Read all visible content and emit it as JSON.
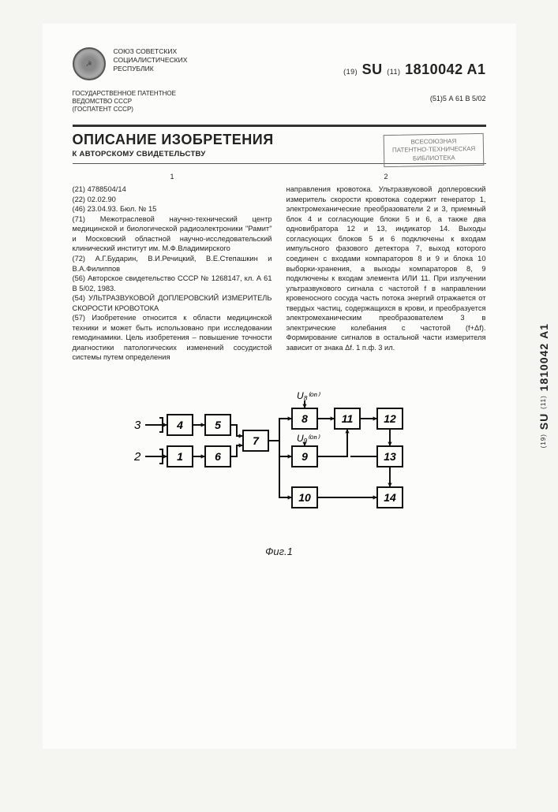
{
  "header": {
    "issuer_line1": "СОЮЗ СОВЕТСКИХ",
    "issuer_line2": "СОЦИАЛИСТИЧЕСКИХ",
    "issuer_line3": "РЕСПУБЛИК",
    "pub_prefix": "(19)",
    "pub_cc": "SU",
    "pub_mid": "(11)",
    "pub_number": "1810042",
    "pub_kind": "A1",
    "class_prefix": "(51)5",
    "class_code": "А 61 В 5/02",
    "agency_line1": "ГОСУДАРСТВЕННОЕ ПАТЕНТНОЕ",
    "agency_line2": "ВЕДОМСТВО СССР",
    "agency_line3": "(ГОСПАТЕНТ СССР)"
  },
  "title_block": {
    "doc_title": "ОПИСАНИЕ ИЗОБРЕТЕНИЯ",
    "subtitle": "К АВТОРСКОМУ СВИДЕТЕЛЬСТВУ",
    "stamp_line1": "ВСЕСОЮЗНАЯ",
    "stamp_line2": "ПАТЕНТНО-ТЕХНИЧЕСКАЯ",
    "stamp_line3": "БИБЛИОТЕКА"
  },
  "body": {
    "col1_num": "1",
    "col2_num": "2",
    "col1": "(21) 4788504/14\n(22) 02.02.90\n(46) 23.04.93. Бюл. № 15\n(71) Межотраслевой научно-технический центр медицинской и биологической радиоэлектроники \"Рамит\" и Московский областной научно-исследовательский клинический институт им. М.Ф.Владимирского\n(72) А.Г.Бударин, В.И.Речицкий, В.Е.Степашкин и В.А.Филиппов\n(56) Авторское свидетельство СССР № 1268147, кл. А 61 В 5/02, 1983.\n(54) УЛЬТРАЗВУКОВОЙ ДОПЛЕРОВСКИЙ ИЗМЕРИТЕЛЬ СКОРОСТИ КРОВОТОКА\n(57) Изобретение относится к области медицинской техники и может быть использовано при исследовании гемодинамики. Цель изобретения – повышение точности диагностики патологических изменений сосудистой системы путем определения",
    "col2": "направления кровотока. Ультразвуковой доплеровский измеритель скорости кровотока содержит генератор 1, электромеханические преобразователи 2 и 3, приемный блок 4 и согласующие блоки 5 и 6, а также два одновибратора 12 и 13, индикатор 14. Выходы согласующих блоков 5 и 6 подключены к входам импульсного фазового детектора 7, выход которого соединен с входами компараторов 8 и 9 и блока 10 выборки-хранения, а выходы компараторов 8, 9 подключены к входам элемента ИЛИ 11. При излучении ультразвукового сигнала с частотой f в направлении кровеносного сосуда часть потока энергий отражается от твердых частиц, содержащихся в крови, и преобразуется электромеханическим преобразователем 3 в электрические колебания с частотой (f+Δf). Формирование сигналов в остальной части измерителя зависит от знака Δf. 1 п.ф. 3 ил."
  },
  "figure": {
    "label": "Фиг.1",
    "u8": "U₈⁽ᵒⁿ⁾",
    "u9": "U₉⁽ᵒⁿ⁾",
    "blocks": [
      "1",
      "2",
      "3",
      "4",
      "5",
      "6",
      "7",
      "8",
      "9",
      "10",
      "11",
      "12",
      "13",
      "14"
    ],
    "box_stroke": "#111",
    "box_fill": "#fcfcf9",
    "line_stroke": "#111",
    "stroke_width": 2
  },
  "side": {
    "cc": "SU",
    "number": "1810042",
    "kind": "A1",
    "prefix19": "(19)",
    "prefix11": "(11)"
  }
}
